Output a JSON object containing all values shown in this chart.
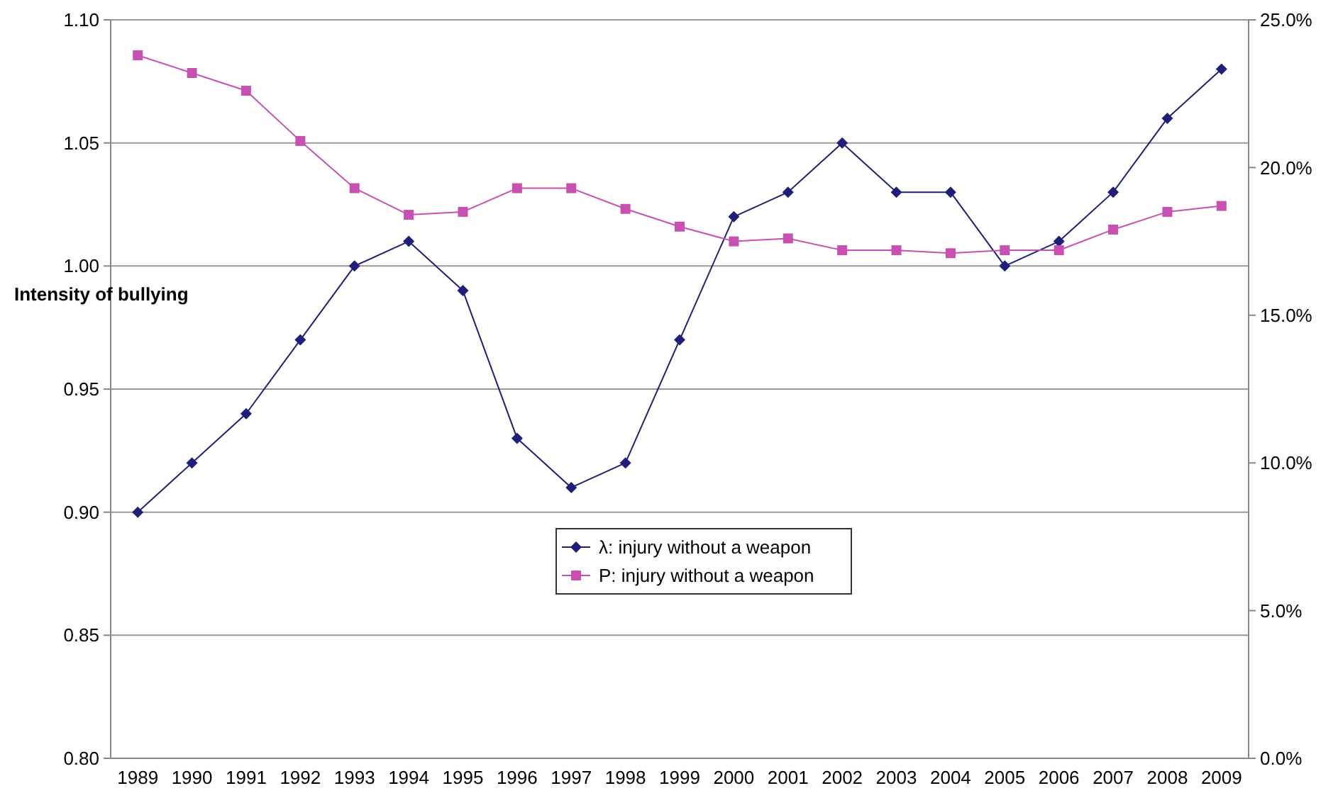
{
  "chart_data": {
    "type": "line",
    "ylabel": "Intensity of bullying",
    "categories": [
      "1989",
      "1990",
      "1991",
      "1992",
      "1993",
      "1994",
      "1995",
      "1996",
      "1997",
      "1998",
      "1999",
      "2000",
      "2001",
      "2002",
      "2003",
      "2004",
      "2005",
      "2006",
      "2007",
      "2008",
      "2009"
    ],
    "series": [
      {
        "name": "λ: injury without a weapon",
        "color": "#1f1f7a",
        "marker": "diamond",
        "values": [
          0.9,
          0.92,
          0.94,
          0.97,
          1.0,
          1.01,
          0.99,
          0.93,
          0.91,
          0.92,
          0.97,
          1.02,
          1.03,
          1.05,
          1.03,
          1.03,
          1.0,
          1.01,
          1.03,
          1.06,
          1.08
        ]
      },
      {
        "name": "P: injury without a weapon",
        "color": "#c850b0",
        "marker": "square",
        "axis": "y2",
        "values": [
          23.8,
          23.2,
          22.6,
          20.9,
          19.3,
          18.4,
          18.5,
          19.3,
          19.3,
          18.6,
          18.0,
          17.5,
          17.6,
          17.2,
          17.2,
          17.1,
          17.2,
          17.2,
          17.9,
          18.5,
          18.7
        ]
      }
    ],
    "ylim": [
      0.8,
      1.1
    ],
    "yticks": [
      {
        "value": 0.8,
        "label": "0.80"
      },
      {
        "value": 0.85,
        "label": "0.85"
      },
      {
        "value": 0.9,
        "label": "0.90"
      },
      {
        "value": 0.95,
        "label": "0.95"
      },
      {
        "value": 1.0,
        "label": "1.00"
      },
      {
        "value": 1.05,
        "label": "1.05"
      },
      {
        "value": 1.1,
        "label": "1.10"
      }
    ],
    "y2lim": [
      0,
      25
    ],
    "y2ticks": [
      {
        "value": 0,
        "label": "0.0%"
      },
      {
        "value": 5,
        "label": "5.0%"
      },
      {
        "value": 10,
        "label": "10.0%"
      },
      {
        "value": 15,
        "label": "15.0%"
      },
      {
        "value": 20,
        "label": "20.0%"
      },
      {
        "value": 25,
        "label": "25.0%"
      }
    ],
    "grid": "y",
    "legend": "center",
    "line_style": "solid"
  }
}
